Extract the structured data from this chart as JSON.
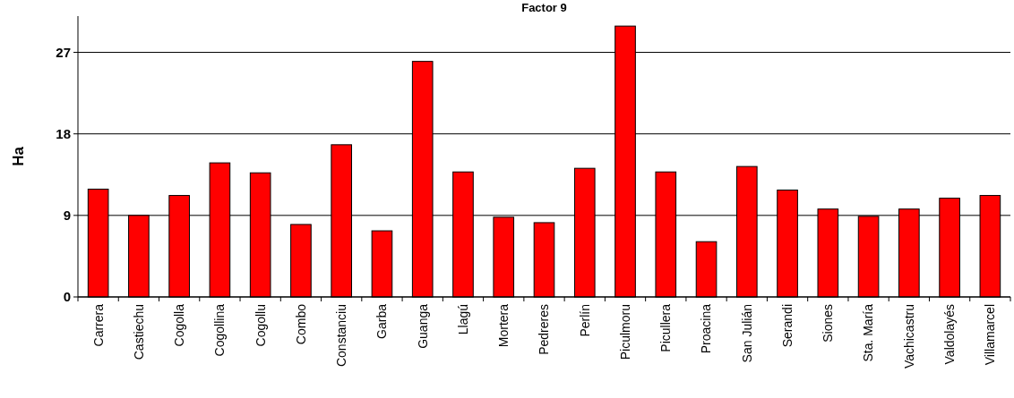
{
  "chart_data": {
    "type": "bar",
    "title": "Factor 9",
    "ylabel": "Ha",
    "categories": [
      "Carrera",
      "Castiechu",
      "Cogolla",
      "Cogollina",
      "Cogollu",
      "Combo",
      "Constanciu",
      "Garba",
      "Guanga",
      "Llagú",
      "Mortera",
      "Pedreres",
      "Perlín",
      "Piculmoru",
      "Picullera",
      "Proacina",
      "San Julián",
      "Serandi",
      "Siones",
      "Sta. María",
      "Vachicastru",
      "Valdolayés",
      "Villamarcel"
    ],
    "values": [
      11.9,
      9.0,
      11.2,
      14.8,
      13.7,
      8.0,
      16.8,
      7.3,
      26.0,
      13.8,
      8.8,
      8.2,
      14.2,
      29.9,
      13.8,
      6.1,
      14.4,
      11.8,
      9.7,
      8.9,
      9.7,
      10.9,
      11.2
    ],
    "color": "#ff0000",
    "ylim": [
      0,
      31
    ],
    "yticks": [
      0,
      9,
      18,
      27
    ],
    "grid": "y"
  }
}
